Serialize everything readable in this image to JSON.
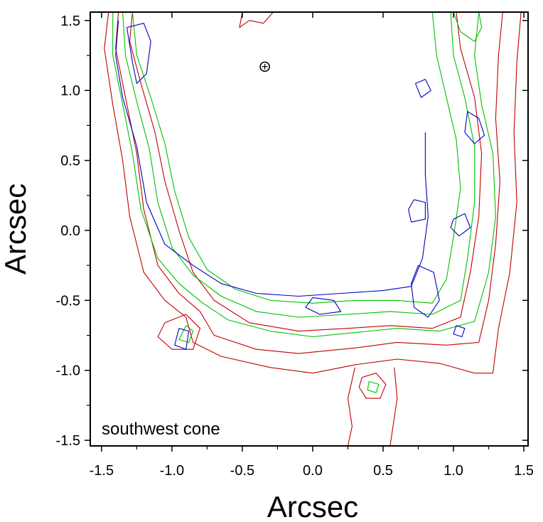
{
  "chart_data": {
    "type": "contour",
    "title": "",
    "xlabel": "Arcsec",
    "ylabel": "Arcsec",
    "xlim": [
      -1.58,
      1.53
    ],
    "ylim": [
      -1.54,
      1.56
    ],
    "xticks": [
      -1.5,
      -1.0,
      -0.5,
      0.0,
      0.5,
      1.0,
      1.5
    ],
    "yticks": [
      -1.5,
      -1.0,
      -0.5,
      0.0,
      0.5,
      1.0,
      1.5
    ],
    "xtick_labels": [
      "-1.5",
      "-1.0",
      "-0.5",
      "0.0",
      "0.5",
      "1.0",
      "1.5"
    ],
    "ytick_labels": [
      "-1.5",
      "-1.0",
      "-0.5",
      "0.0",
      "0.5",
      "1.0",
      "1.5"
    ],
    "grid": false,
    "annotation": "southwest cone",
    "nucleus_marker": {
      "x": -0.34,
      "y": 1.17,
      "symbol": "circle-plus"
    },
    "series": [
      {
        "color": "#c00000",
        "contours": [
          [
            [
              -1.45,
              1.56
            ],
            [
              -1.48,
              1.3
            ],
            [
              -1.42,
              0.9
            ],
            [
              -1.35,
              0.5
            ],
            [
              -1.3,
              0.1
            ],
            [
              -1.2,
              -0.3
            ],
            [
              -1.05,
              -0.5
            ],
            [
              -0.9,
              -0.62
            ],
            [
              -0.85,
              -0.8
            ],
            [
              -0.65,
              -0.9
            ],
            [
              -0.3,
              -0.98
            ],
            [
              0.0,
              -1.02
            ],
            [
              0.3,
              -0.96
            ],
            [
              0.6,
              -0.92
            ],
            [
              0.9,
              -0.95
            ],
            [
              1.15,
              -1.02
            ],
            [
              1.28,
              -1.02
            ],
            [
              1.32,
              -0.7
            ],
            [
              1.4,
              -0.3
            ],
            [
              1.45,
              0.2
            ],
            [
              1.43,
              0.7
            ],
            [
              1.45,
              1.2
            ],
            [
              1.48,
              1.56
            ]
          ],
          [
            [
              -1.38,
              1.56
            ],
            [
              -1.4,
              1.3
            ],
            [
              -1.33,
              0.95
            ],
            [
              -1.25,
              0.55
            ],
            [
              -1.2,
              0.15
            ],
            [
              -1.1,
              -0.25
            ],
            [
              -0.95,
              -0.45
            ],
            [
              -0.8,
              -0.58
            ],
            [
              -0.7,
              -0.75
            ],
            [
              -0.4,
              -0.85
            ],
            [
              -0.1,
              -0.88
            ],
            [
              0.3,
              -0.84
            ],
            [
              0.6,
              -0.8
            ],
            [
              0.95,
              -0.82
            ],
            [
              1.18,
              -0.8
            ],
            [
              1.25,
              -0.5
            ],
            [
              1.3,
              -0.1
            ],
            [
              1.33,
              0.35
            ],
            [
              1.3,
              0.8
            ],
            [
              1.32,
              1.25
            ],
            [
              1.35,
              1.56
            ]
          ],
          [
            [
              -1.28,
              1.56
            ],
            [
              -1.3,
              1.35
            ],
            [
              -1.22,
              1.05
            ],
            [
              -1.12,
              0.7
            ],
            [
              -1.05,
              0.35
            ],
            [
              -0.95,
              0.0
            ],
            [
              -0.85,
              -0.3
            ],
            [
              -0.7,
              -0.5
            ],
            [
              -0.45,
              -0.66
            ],
            [
              -0.1,
              -0.72
            ],
            [
              0.25,
              -0.7
            ],
            [
              0.55,
              -0.68
            ],
            [
              0.85,
              -0.7
            ],
            [
              1.05,
              -0.62
            ],
            [
              1.12,
              -0.3
            ],
            [
              1.18,
              0.1
            ],
            [
              1.2,
              0.55
            ],
            [
              1.15,
              0.95
            ],
            [
              1.05,
              1.3
            ],
            [
              1.02,
              1.56
            ]
          ],
          [
            [
              -0.5,
              1.56
            ],
            [
              -0.52,
              1.45
            ],
            [
              -0.45,
              1.5
            ],
            [
              -0.35,
              1.48
            ],
            [
              -0.28,
              1.56
            ]
          ],
          [
            [
              -1.05,
              -0.66
            ],
            [
              -0.9,
              -0.6
            ],
            [
              -0.8,
              -0.7
            ],
            [
              -0.85,
              -0.85
            ],
            [
              -1.0,
              -0.85
            ],
            [
              -1.1,
              -0.76
            ],
            [
              -1.05,
              -0.66
            ]
          ],
          [
            [
              0.35,
              -1.05
            ],
            [
              0.45,
              -1.02
            ],
            [
              0.52,
              -1.1
            ],
            [
              0.48,
              -1.2
            ],
            [
              0.38,
              -1.2
            ],
            [
              0.33,
              -1.12
            ],
            [
              0.35,
              -1.05
            ]
          ],
          [
            [
              0.3,
              -0.98
            ],
            [
              0.25,
              -1.2
            ],
            [
              0.28,
              -1.4
            ],
            [
              0.25,
              -1.54
            ]
          ],
          [
            [
              0.58,
              -0.98
            ],
            [
              0.6,
              -1.2
            ],
            [
              0.55,
              -1.54
            ]
          ]
        ]
      },
      {
        "color": "#00c000",
        "contours": [
          [
            [
              -1.42,
              1.56
            ],
            [
              -1.42,
              1.25
            ],
            [
              -1.35,
              0.9
            ],
            [
              -1.28,
              0.55
            ],
            [
              -1.22,
              0.15
            ],
            [
              -1.1,
              -0.2
            ],
            [
              -0.95,
              -0.38
            ],
            [
              -0.78,
              -0.52
            ],
            [
              -0.6,
              -0.64
            ],
            [
              -0.3,
              -0.72
            ],
            [
              0.0,
              -0.76
            ],
            [
              0.3,
              -0.73
            ],
            [
              0.6,
              -0.7
            ],
            [
              0.9,
              -0.72
            ],
            [
              1.15,
              -0.65
            ],
            [
              1.25,
              -0.3
            ],
            [
              1.3,
              0.1
            ],
            [
              1.28,
              0.55
            ],
            [
              1.2,
              0.9
            ],
            [
              1.15,
              1.25
            ],
            [
              1.18,
              1.56
            ]
          ],
          [
            [
              -1.35,
              1.56
            ],
            [
              -1.33,
              1.25
            ],
            [
              -1.25,
              0.92
            ],
            [
              -1.16,
              0.58
            ],
            [
              -1.1,
              0.2
            ],
            [
              -1.0,
              -0.12
            ],
            [
              -0.85,
              -0.32
            ],
            [
              -0.65,
              -0.47
            ],
            [
              -0.4,
              -0.58
            ],
            [
              -0.1,
              -0.62
            ],
            [
              0.25,
              -0.6
            ],
            [
              0.55,
              -0.58
            ],
            [
              0.85,
              -0.6
            ],
            [
              1.05,
              -0.5
            ],
            [
              1.1,
              -0.2
            ],
            [
              1.15,
              0.2
            ],
            [
              1.15,
              0.6
            ],
            [
              1.08,
              0.95
            ],
            [
              1.0,
              1.25
            ],
            [
              0.98,
              1.56
            ]
          ],
          [
            [
              -1.28,
              1.56
            ],
            [
              -1.25,
              1.25
            ],
            [
              -1.15,
              0.95
            ],
            [
              -1.05,
              0.62
            ],
            [
              -0.98,
              0.28
            ],
            [
              -0.88,
              -0.05
            ],
            [
              -0.75,
              -0.28
            ],
            [
              -0.55,
              -0.42
            ],
            [
              -0.3,
              -0.5
            ],
            [
              0.0,
              -0.52
            ],
            [
              0.3,
              -0.5
            ],
            [
              0.6,
              -0.5
            ],
            [
              0.85,
              -0.52
            ],
            [
              0.95,
              -0.35
            ],
            [
              1.0,
              -0.05
            ],
            [
              1.05,
              0.3
            ],
            [
              1.02,
              0.65
            ],
            [
              0.95,
              0.95
            ],
            [
              0.88,
              1.25
            ],
            [
              0.85,
              1.56
            ]
          ],
          [
            [
              -0.9,
              -0.68
            ],
            [
              -0.85,
              -0.72
            ],
            [
              -0.88,
              -0.8
            ],
            [
              -0.95,
              -0.78
            ],
            [
              -0.9,
              -0.68
            ]
          ],
          [
            [
              0.4,
              -1.08
            ],
            [
              0.47,
              -1.1
            ],
            [
              0.45,
              -1.16
            ],
            [
              0.39,
              -1.14
            ],
            [
              0.4,
              -1.08
            ]
          ],
          [
            [
              1.0,
              1.56
            ],
            [
              1.05,
              1.42
            ],
            [
              1.15,
              1.35
            ],
            [
              1.2,
              1.45
            ],
            [
              1.18,
              1.56
            ]
          ]
        ]
      },
      {
        "color": "#0000c0",
        "contours": [
          [
            [
              -1.38,
              1.5
            ],
            [
              -1.4,
              1.25
            ],
            [
              -1.35,
              0.95
            ],
            [
              -1.25,
              0.6
            ],
            [
              -1.18,
              0.2
            ],
            [
              -1.05,
              -0.1
            ],
            [
              -0.85,
              -0.25
            ],
            [
              -0.65,
              -0.38
            ],
            [
              -0.4,
              -0.45
            ],
            [
              -0.1,
              -0.47
            ],
            [
              0.2,
              -0.45
            ],
            [
              0.5,
              -0.43
            ],
            [
              0.7,
              -0.4
            ],
            [
              0.78,
              -0.2
            ],
            [
              0.82,
              0.1
            ],
            [
              0.8,
              0.4
            ],
            [
              0.8,
              0.7
            ]
          ],
          [
            [
              -1.32,
              1.45
            ],
            [
              -1.28,
              1.2
            ],
            [
              -1.25,
              1.05
            ],
            [
              -1.18,
              1.12
            ],
            [
              -1.15,
              1.35
            ],
            [
              -1.2,
              1.48
            ],
            [
              -1.32,
              1.45
            ]
          ],
          [
            [
              0.73,
              1.05
            ],
            [
              0.77,
              0.95
            ],
            [
              0.84,
              1.0
            ],
            [
              0.8,
              1.08
            ],
            [
              0.73,
              1.05
            ]
          ],
          [
            [
              1.1,
              0.85
            ],
            [
              1.18,
              0.8
            ],
            [
              1.22,
              0.68
            ],
            [
              1.15,
              0.62
            ],
            [
              1.08,
              0.7
            ],
            [
              1.1,
              0.85
            ]
          ],
          [
            [
              1.0,
              0.08
            ],
            [
              1.08,
              0.12
            ],
            [
              1.12,
              0.02
            ],
            [
              1.04,
              -0.04
            ],
            [
              0.98,
              0.02
            ],
            [
              1.0,
              0.08
            ]
          ],
          [
            [
              0.72,
              0.22
            ],
            [
              0.8,
              0.2
            ],
            [
              0.8,
              0.08
            ],
            [
              0.7,
              0.06
            ],
            [
              0.68,
              0.15
            ],
            [
              0.72,
              0.22
            ]
          ],
          [
            [
              0.75,
              -0.25
            ],
            [
              0.86,
              -0.3
            ],
            [
              0.9,
              -0.5
            ],
            [
              0.82,
              -0.62
            ],
            [
              0.72,
              -0.55
            ],
            [
              0.7,
              -0.38
            ],
            [
              0.75,
              -0.25
            ]
          ],
          [
            [
              -0.95,
              -0.7
            ],
            [
              -0.88,
              -0.72
            ],
            [
              -0.9,
              -0.85
            ],
            [
              -0.98,
              -0.82
            ],
            [
              -0.95,
              -0.7
            ]
          ],
          [
            [
              0.0,
              -0.48
            ],
            [
              0.15,
              -0.5
            ],
            [
              0.2,
              -0.58
            ],
            [
              0.05,
              -0.6
            ],
            [
              -0.05,
              -0.55
            ],
            [
              0.0,
              -0.48
            ]
          ],
          [
            [
              1.02,
              -0.68
            ],
            [
              1.08,
              -0.7
            ],
            [
              1.06,
              -0.76
            ],
            [
              1.0,
              -0.74
            ],
            [
              1.02,
              -0.68
            ]
          ]
        ]
      }
    ]
  }
}
